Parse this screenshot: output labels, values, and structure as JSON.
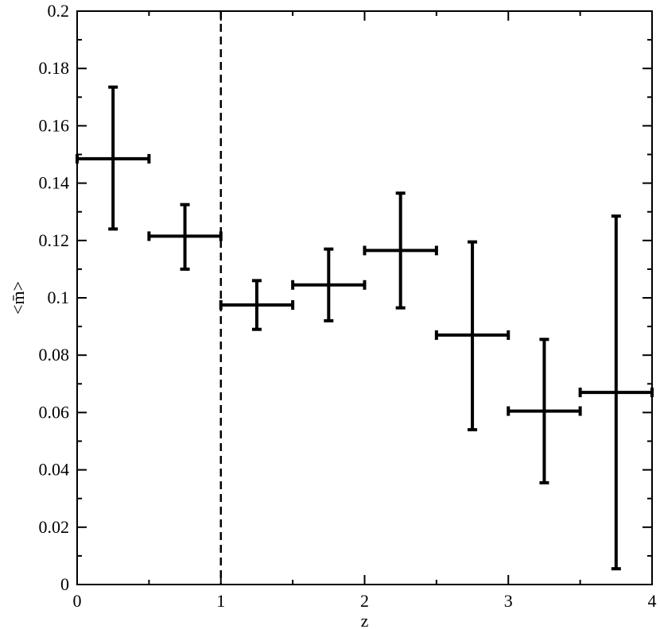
{
  "chart_data": {
    "type": "scatter",
    "title": "",
    "xlabel": "z",
    "ylabel": "<m̄>",
    "xlim": [
      0,
      4
    ],
    "ylim": [
      0,
      0.2
    ],
    "x_ticks": [
      0,
      1,
      2,
      3,
      4
    ],
    "y_ticks": [
      0,
      0.02,
      0.04,
      0.06,
      0.08,
      0.1,
      0.12,
      0.14,
      0.16,
      0.18,
      0.2
    ],
    "x_tick_labels": [
      "0",
      "1",
      "2",
      "3",
      "4"
    ],
    "y_tick_labels": [
      "0",
      "0.02",
      "0.04",
      "0.06",
      "0.08",
      "0.1",
      "0.12",
      "0.14",
      "0.16",
      "0.18",
      "0.2"
    ],
    "grid": false,
    "vertical_reference_line": {
      "x": 1,
      "style": "dashed"
    },
    "series": [
      {
        "points": [
          {
            "x": 0.25,
            "y": 0.1485,
            "x_err": [
              0.0,
              0.5
            ],
            "y_err": [
              0.124,
              0.1735
            ]
          },
          {
            "x": 0.75,
            "y": 0.1215,
            "x_err": [
              0.5,
              1.0
            ],
            "y_err": [
              0.11,
              0.1325
            ]
          },
          {
            "x": 1.25,
            "y": 0.0975,
            "x_err": [
              1.0,
              1.5
            ],
            "y_err": [
              0.089,
              0.106
            ]
          },
          {
            "x": 1.75,
            "y": 0.1045,
            "x_err": [
              1.5,
              2.0
            ],
            "y_err": [
              0.092,
              0.117
            ]
          },
          {
            "x": 2.25,
            "y": 0.1165,
            "x_err": [
              2.0,
              2.5
            ],
            "y_err": [
              0.0965,
              0.1365
            ]
          },
          {
            "x": 2.75,
            "y": 0.087,
            "x_err": [
              2.5,
              3.0
            ],
            "y_err": [
              0.054,
              0.1195
            ]
          },
          {
            "x": 3.25,
            "y": 0.0605,
            "x_err": [
              3.0,
              3.5
            ],
            "y_err": [
              0.0355,
              0.0855
            ]
          },
          {
            "x": 3.75,
            "y": 0.067,
            "x_err": [
              3.5,
              4.0
            ],
            "y_err": [
              0.0055,
              0.1285
            ]
          }
        ]
      }
    ]
  }
}
